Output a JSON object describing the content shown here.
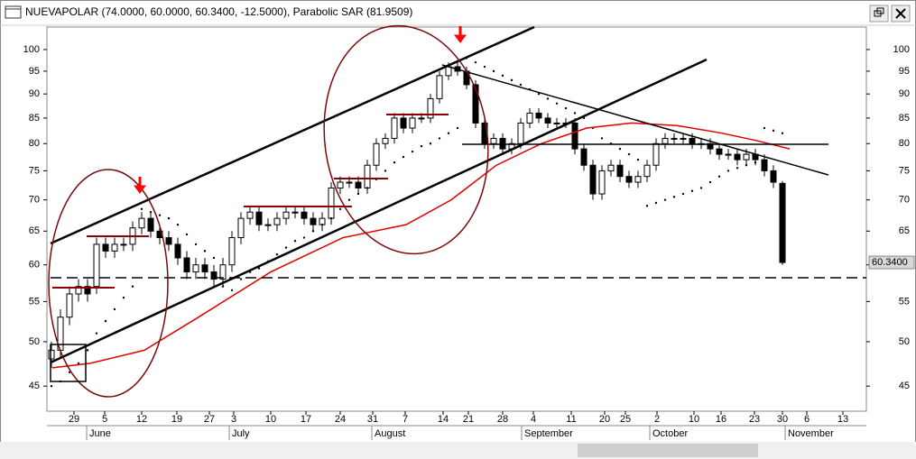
{
  "chart_data": {
    "type": "candlestick",
    "title": "NUEVAPOLAR (74.0000, 60.0000, 60.3400, -12.5000), Parabolic SAR (81.9509)",
    "log_scale": true,
    "ylim": [
      42.4,
      107.3
    ],
    "yticks": [
      45,
      50,
      55,
      60,
      65,
      70,
      75,
      80,
      85,
      90,
      95,
      100
    ],
    "xlim": [
      -0.4,
      90.4
    ],
    "xticks": [
      {
        "value": 2.6,
        "label": "29"
      },
      {
        "value": 6,
        "label": "5"
      },
      {
        "value": 10.1,
        "label": "12"
      },
      {
        "value": 14,
        "label": "19"
      },
      {
        "value": 17.6,
        "label": "27"
      },
      {
        "value": 20.3,
        "label": "3"
      },
      {
        "value": 24.4,
        "label": "10"
      },
      {
        "value": 28.3,
        "label": "17"
      },
      {
        "value": 32.1,
        "label": "24"
      },
      {
        "value": 35.7,
        "label": "31"
      },
      {
        "value": 39.3,
        "label": "7"
      },
      {
        "value": 43.5,
        "label": "14"
      },
      {
        "value": 46.3,
        "label": "21"
      },
      {
        "value": 50.1,
        "label": "28"
      },
      {
        "value": 53.5,
        "label": "4"
      },
      {
        "value": 57.7,
        "label": "11"
      },
      {
        "value": 61.4,
        "label": "20"
      },
      {
        "value": 63.7,
        "label": "25"
      },
      {
        "value": 67.2,
        "label": "2"
      },
      {
        "value": 71.3,
        "label": "10"
      },
      {
        "value": 74.3,
        "label": "16"
      },
      {
        "value": 78,
        "label": "23"
      },
      {
        "value": 81.1,
        "label": "30"
      },
      {
        "value": 83.8,
        "label": "6"
      },
      {
        "value": 87.8,
        "label": "13"
      }
    ],
    "month_ticks": [
      {
        "value": 4,
        "label": "June"
      },
      {
        "value": 19.8,
        "label": "July"
      },
      {
        "value": 35.6,
        "label": "August"
      },
      {
        "value": 52.2,
        "label": "September"
      },
      {
        "value": 66.4,
        "label": "October"
      },
      {
        "value": 81.4,
        "label": "November"
      }
    ],
    "open": [
      48,
      49,
      53,
      56,
      57,
      57,
      63,
      62,
      63,
      63,
      65.5,
      67,
      65,
      64,
      63,
      61,
      59,
      60,
      59,
      58,
      60,
      64,
      67,
      68,
      66,
      66,
      67,
      68,
      68,
      67,
      66,
      67,
      72,
      73,
      73,
      72,
      76,
      80,
      81,
      85,
      83,
      85,
      85,
      89,
      94,
      96,
      95,
      92,
      84,
      80,
      81,
      79,
      80,
      84,
      86,
      85,
      84,
      84,
      84,
      79,
      76,
      71,
      75,
      76,
      74,
      73,
      74,
      76,
      80,
      81,
      81,
      81,
      80,
      80,
      79,
      78,
      78,
      77,
      78,
      77,
      75,
      72.8
    ],
    "high": [
      50,
      54,
      57,
      58,
      58,
      64,
      64,
      64,
      64,
      66.5,
      68,
      68,
      66,
      65,
      64,
      62,
      61,
      61,
      60,
      61,
      65,
      68,
      69,
      69,
      67,
      68,
      69,
      69,
      69,
      68,
      68,
      73,
      74,
      74,
      74,
      77,
      81,
      82,
      86,
      86,
      86,
      86,
      90,
      95,
      97,
      97,
      96,
      93,
      85,
      82,
      82,
      81,
      85,
      87,
      87,
      86,
      85,
      85,
      85,
      80,
      77,
      76,
      77,
      77,
      75,
      75,
      77,
      81,
      82,
      82,
      82,
      82,
      81,
      81,
      80,
      79,
      79,
      79,
      79,
      78,
      76,
      73.2
    ],
    "low": [
      47,
      48,
      52,
      55,
      55,
      56,
      61,
      61,
      62,
      62,
      64.5,
      64,
      63,
      62,
      60,
      58,
      58,
      58,
      57,
      57,
      59,
      63,
      66,
      65,
      65,
      65,
      66,
      67,
      66,
      65,
      65,
      66,
      71,
      72,
      71,
      71,
      75,
      79,
      80,
      82,
      82,
      84,
      84,
      88,
      93,
      94,
      91,
      83,
      79,
      79,
      78,
      78,
      79,
      83,
      84,
      83,
      83,
      83,
      78,
      75,
      70,
      70,
      74,
      73,
      72,
      72,
      73,
      75,
      79,
      80,
      80,
      79,
      79,
      78,
      77,
      77,
      76,
      76,
      76,
      74,
      72,
      60.0
    ],
    "close": [
      49,
      53,
      56,
      57,
      56,
      63,
      62,
      63,
      63,
      65.5,
      67,
      65,
      64,
      63,
      61,
      59,
      60,
      59,
      58,
      60,
      64,
      67,
      68,
      66,
      66,
      67,
      68,
      68,
      67,
      66,
      67,
      72,
      73,
      73,
      72,
      76,
      80,
      81,
      85,
      83,
      85,
      85,
      89,
      94,
      96,
      95,
      92,
      84,
      80,
      81,
      79,
      80,
      84,
      86,
      85,
      84,
      84,
      84,
      79,
      76,
      71,
      75,
      76,
      74,
      73,
      74,
      76,
      80,
      81,
      81,
      81,
      80,
      80,
      79,
      78,
      78,
      77,
      78,
      77,
      75,
      73,
      60.34
    ],
    "up_color": "#ffffff",
    "down_color": "#000000",
    "sar": {
      "name": "Parabolic SAR",
      "color": "#000000",
      "values": [
        45,
        45.5,
        46.5,
        47.5,
        49,
        51,
        52.5,
        54,
        55.5,
        57,
        68.5,
        68,
        67.5,
        67,
        66,
        64.5,
        63,
        62,
        61,
        57,
        56.5,
        58,
        59,
        59.5,
        60.5,
        61.5,
        62.5,
        63.5,
        64,
        65,
        66,
        67,
        68.5,
        70,
        71,
        72,
        73.5,
        75,
        76.5,
        77.5,
        78.5,
        79.5,
        80,
        81,
        82,
        83,
        98,
        97,
        96,
        95,
        94,
        93,
        92,
        91,
        90,
        89,
        88,
        87,
        86,
        85,
        83,
        81,
        80,
        79,
        78,
        77,
        69,
        69.5,
        70,
        70.5,
        71,
        71.5,
        72,
        73,
        74,
        75,
        75.5,
        76,
        76.5,
        83,
        82.5,
        82
      ]
    },
    "ma": {
      "color": "#e00000",
      "x": [
        0.2,
        4.4,
        10.4,
        16.4,
        24.4,
        32.4,
        39.4,
        44.4,
        49.4,
        54.4,
        59.4,
        64.4,
        69.4,
        74.4,
        78.4,
        81.9
      ],
      "values": [
        47,
        47.5,
        49,
        53,
        59,
        64,
        66,
        70,
        76,
        80,
        83,
        84,
        83.5,
        82,
        80.5,
        79
      ]
    },
    "last_price_label": "60.3400"
  }
}
